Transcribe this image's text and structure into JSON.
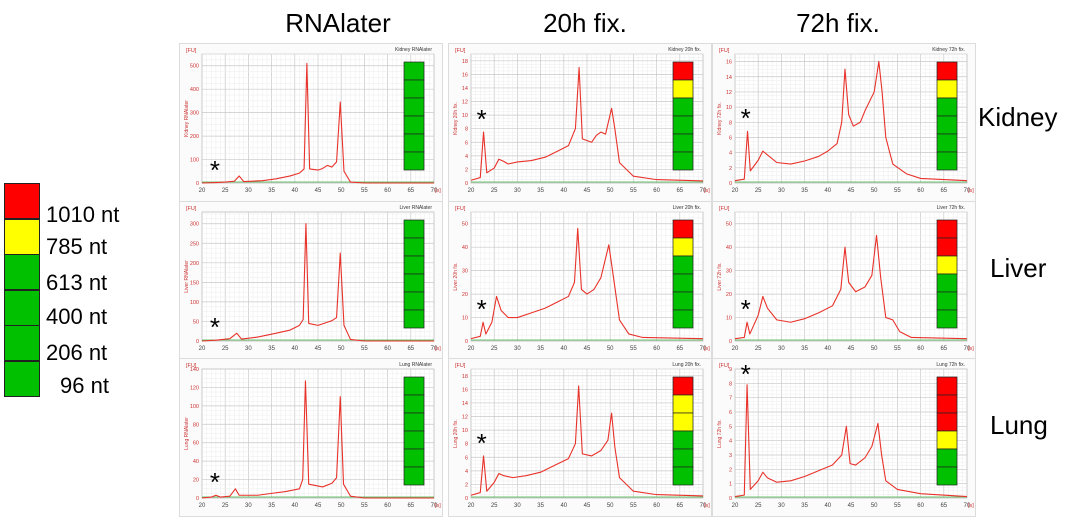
{
  "columns": [
    "RNAlater",
    "20h fix.",
    "72h fix."
  ],
  "rows": [
    "Kidney",
    "Liver",
    "Lung"
  ],
  "legend": {
    "items": [
      {
        "label": "1010 nt",
        "color": "#ff0000"
      },
      {
        "label": "785 nt",
        "color": "#ffff00"
      },
      {
        "label": "613 nt",
        "color": "#00c000"
      },
      {
        "label": "400 nt",
        "color": "#00c000"
      },
      {
        "label": "206 nt",
        "color": "#00c000"
      },
      {
        "label": "96 nt",
        "color": "#00c000"
      }
    ]
  },
  "colors": {
    "trace": "#e8322a",
    "baseline": "#3cb043",
    "red": "#ff0000",
    "yellow": "#ffff00",
    "green": "#00c000"
  },
  "chart_data": {
    "type": "line",
    "x_unit": "[s]",
    "y_unit": "[FU]",
    "xlim": [
      20,
      70
    ],
    "x_ticks": [
      20,
      25,
      30,
      35,
      40,
      45,
      50,
      55,
      60,
      65,
      70
    ],
    "panels": [
      {
        "row": "Kidney",
        "col": "RNAlater",
        "sample": "Kidney RNAlater",
        "ylim": [
          0,
          550
        ],
        "y_ticks": [
          0,
          100,
          200,
          300,
          400,
          500
        ],
        "asterisk_x": 23,
        "bars": [
          "green",
          "green",
          "green",
          "green",
          "green",
          "green"
        ],
        "points": [
          [
            20,
            0
          ],
          [
            23,
            2
          ],
          [
            25,
            4
          ],
          [
            27,
            8
          ],
          [
            28,
            30
          ],
          [
            29,
            6
          ],
          [
            33,
            10
          ],
          [
            36,
            18
          ],
          [
            39,
            30
          ],
          [
            41,
            42
          ],
          [
            42,
            60
          ],
          [
            42.6,
            510
          ],
          [
            43.2,
            60
          ],
          [
            45,
            55
          ],
          [
            46,
            62
          ],
          [
            47,
            75
          ],
          [
            48,
            68
          ],
          [
            49,
            90
          ],
          [
            49.8,
            345
          ],
          [
            50.6,
            50
          ],
          [
            52,
            4
          ],
          [
            55,
            0
          ],
          [
            70,
            0
          ]
        ]
      },
      {
        "row": "Kidney",
        "col": "20h fix.",
        "sample": "Kidney 20h fix.",
        "ylim": [
          0,
          19
        ],
        "y_ticks": [
          0,
          2,
          4,
          6,
          8,
          10,
          12,
          14,
          16,
          18
        ],
        "asterisk_x": 22.5,
        "bars": [
          "red",
          "yellow",
          "green",
          "green",
          "green",
          "green"
        ],
        "points": [
          [
            20,
            0.4
          ],
          [
            22,
            0.8
          ],
          [
            22.7,
            7.5
          ],
          [
            23.4,
            1.5
          ],
          [
            25,
            2.2
          ],
          [
            26,
            3.5
          ],
          [
            27,
            3.2
          ],
          [
            28,
            2.8
          ],
          [
            30,
            3.1
          ],
          [
            33,
            3.3
          ],
          [
            36,
            3.8
          ],
          [
            39,
            4.8
          ],
          [
            41,
            5.5
          ],
          [
            42.5,
            8
          ],
          [
            43.3,
            17
          ],
          [
            44,
            6.5
          ],
          [
            46,
            6
          ],
          [
            47,
            7
          ],
          [
            48,
            7.5
          ],
          [
            49,
            7.2
          ],
          [
            50.3,
            11
          ],
          [
            51,
            8
          ],
          [
            52,
            3
          ],
          [
            55,
            1
          ],
          [
            60,
            0.5
          ],
          [
            70,
            0.3
          ]
        ]
      },
      {
        "row": "Kidney",
        "col": "72h fix.",
        "sample": "Kidney 72h fix.",
        "ylim": [
          0,
          17
        ],
        "y_ticks": [
          0,
          2,
          4,
          6,
          8,
          10,
          12,
          14,
          16
        ],
        "asterisk_x": 22.5,
        "bars": [
          "red",
          "yellow",
          "green",
          "green",
          "green",
          "green"
        ],
        "points": [
          [
            20,
            0.3
          ],
          [
            22,
            0.5
          ],
          [
            22.7,
            6.8
          ],
          [
            23.3,
            1.6
          ],
          [
            25,
            3
          ],
          [
            26,
            4.2
          ],
          [
            27,
            3.7
          ],
          [
            29,
            2.7
          ],
          [
            32,
            2.5
          ],
          [
            35,
            2.9
          ],
          [
            38,
            3.5
          ],
          [
            40,
            4.2
          ],
          [
            42,
            5.2
          ],
          [
            43,
            8
          ],
          [
            43.7,
            15
          ],
          [
            44.5,
            9
          ],
          [
            45.5,
            7.5
          ],
          [
            47,
            8
          ],
          [
            48,
            9.5
          ],
          [
            50,
            12
          ],
          [
            51,
            16
          ],
          [
            51.7,
            12
          ],
          [
            52.5,
            6
          ],
          [
            54,
            2.5
          ],
          [
            57,
            1.2
          ],
          [
            60,
            0.6
          ],
          [
            70,
            0.3
          ]
        ]
      },
      {
        "row": "Liver",
        "col": "RNAlater",
        "sample": "Liver RNAlater",
        "ylim": [
          0,
          330
        ],
        "y_ticks": [
          0,
          50,
          100,
          150,
          200,
          250,
          300
        ],
        "asterisk_x": 23,
        "bars": [
          "green",
          "green",
          "green",
          "green",
          "green",
          "green"
        ],
        "points": [
          [
            20,
            0
          ],
          [
            23,
            2
          ],
          [
            26,
            6
          ],
          [
            27.5,
            20
          ],
          [
            28.5,
            5
          ],
          [
            32,
            10
          ],
          [
            36,
            20
          ],
          [
            39,
            28
          ],
          [
            41,
            40
          ],
          [
            41.8,
            55
          ],
          [
            42.4,
            300
          ],
          [
            43,
            45
          ],
          [
            45,
            40
          ],
          [
            47,
            48
          ],
          [
            48,
            52
          ],
          [
            49,
            60
          ],
          [
            49.8,
            225
          ],
          [
            50.6,
            40
          ],
          [
            52,
            4
          ],
          [
            55,
            0
          ],
          [
            70,
            0
          ]
        ]
      },
      {
        "row": "Liver",
        "col": "20h fix.",
        "sample": "Liver 20h fix.",
        "ylim": [
          0,
          55
        ],
        "y_ticks": [
          0,
          10,
          20,
          30,
          40,
          50
        ],
        "asterisk_x": 22.5,
        "bars": [
          "red",
          "yellow",
          "green",
          "green",
          "green",
          "green"
        ],
        "points": [
          [
            20,
            1
          ],
          [
            22,
            2
          ],
          [
            22.6,
            8
          ],
          [
            23.2,
            3
          ],
          [
            24.5,
            8
          ],
          [
            25.5,
            19
          ],
          [
            26.5,
            13
          ],
          [
            28,
            10
          ],
          [
            30,
            10
          ],
          [
            33,
            12
          ],
          [
            36,
            14
          ],
          [
            39,
            17
          ],
          [
            41,
            19
          ],
          [
            42.3,
            25
          ],
          [
            43,
            48
          ],
          [
            43.8,
            22
          ],
          [
            45,
            20
          ],
          [
            46.5,
            22
          ],
          [
            48,
            27
          ],
          [
            49.7,
            41
          ],
          [
            50.5,
            30
          ],
          [
            52,
            9
          ],
          [
            54,
            3
          ],
          [
            57,
            1.5
          ],
          [
            70,
            1
          ]
        ]
      },
      {
        "row": "Liver",
        "col": "72h fix.",
        "sample": "Liver 72h fix.",
        "ylim": [
          0,
          55
        ],
        "y_ticks": [
          0,
          10,
          20,
          30,
          40,
          50
        ],
        "asterisk_x": 22.5,
        "bars": [
          "red",
          "red",
          "yellow",
          "green",
          "green",
          "green"
        ],
        "points": [
          [
            20,
            1
          ],
          [
            22,
            1.5
          ],
          [
            22.6,
            8
          ],
          [
            23.2,
            3
          ],
          [
            25,
            11
          ],
          [
            26,
            19
          ],
          [
            27,
            14
          ],
          [
            29,
            9
          ],
          [
            32,
            8
          ],
          [
            35,
            9.5
          ],
          [
            38,
            12
          ],
          [
            41,
            15
          ],
          [
            42.8,
            22
          ],
          [
            43.7,
            40
          ],
          [
            44.5,
            25
          ],
          [
            46,
            21
          ],
          [
            48,
            23
          ],
          [
            49.5,
            28
          ],
          [
            50.5,
            45
          ],
          [
            51.4,
            27
          ],
          [
            52.5,
            10
          ],
          [
            54,
            9
          ],
          [
            55.5,
            4
          ],
          [
            58,
            1.5
          ],
          [
            70,
            1
          ]
        ]
      },
      {
        "row": "Lung",
        "col": "RNAlater",
        "sample": "Lung RNAlater",
        "ylim": [
          0,
          140
        ],
        "y_ticks": [
          0,
          20,
          40,
          60,
          80,
          100,
          120,
          140
        ],
        "asterisk_x": 23,
        "bars": [
          "green",
          "green",
          "green",
          "green",
          "green",
          "green"
        ],
        "points": [
          [
            20,
            0
          ],
          [
            22,
            1
          ],
          [
            23,
            3
          ],
          [
            24,
            1
          ],
          [
            26,
            2
          ],
          [
            27.2,
            10
          ],
          [
            28,
            3
          ],
          [
            32,
            3
          ],
          [
            35,
            5
          ],
          [
            38,
            7
          ],
          [
            41,
            10
          ],
          [
            41.7,
            20
          ],
          [
            42.3,
            127
          ],
          [
            43,
            15
          ],
          [
            46,
            12
          ],
          [
            48,
            16
          ],
          [
            49,
            22
          ],
          [
            49.8,
            110
          ],
          [
            50.5,
            15
          ],
          [
            52,
            2
          ],
          [
            55,
            0
          ],
          [
            70,
            0
          ]
        ]
      },
      {
        "row": "Lung",
        "col": "20h fix.",
        "sample": "Lung 20h fix.",
        "ylim": [
          0,
          19
        ],
        "y_ticks": [
          0,
          2,
          4,
          6,
          8,
          10,
          12,
          14,
          16,
          18
        ],
        "asterisk_x": 22.5,
        "bars": [
          "red",
          "yellow",
          "yellow",
          "green",
          "green",
          "green"
        ],
        "points": [
          [
            20,
            0.4
          ],
          [
            22,
            0.8
          ],
          [
            22.7,
            6.2
          ],
          [
            23.4,
            1
          ],
          [
            25,
            2.3
          ],
          [
            26,
            3.6
          ],
          [
            27,
            3.3
          ],
          [
            29,
            3
          ],
          [
            32,
            3.3
          ],
          [
            35,
            3.8
          ],
          [
            38,
            4.8
          ],
          [
            41,
            5.8
          ],
          [
            42.5,
            8
          ],
          [
            43.2,
            16.5
          ],
          [
            44,
            6.5
          ],
          [
            46,
            6.2
          ],
          [
            48,
            7
          ],
          [
            49.5,
            8.5
          ],
          [
            50.3,
            12.5
          ],
          [
            51,
            7.5
          ],
          [
            52,
            3
          ],
          [
            55,
            1
          ],
          [
            60,
            0.5
          ],
          [
            70,
            0.3
          ]
        ]
      },
      {
        "row": "Lung",
        "col": "72h fix.",
        "sample": "Lung 72h fix.",
        "ylim": [
          0,
          9
        ],
        "y_ticks": [
          0,
          1,
          2,
          3,
          4,
          5,
          6,
          7,
          8,
          9
        ],
        "asterisk_x": 22.5,
        "bars": [
          "red",
          "red",
          "red",
          "yellow",
          "green",
          "green"
        ],
        "points": [
          [
            20,
            0.1
          ],
          [
            22,
            0.2
          ],
          [
            22.6,
            7.9
          ],
          [
            23.3,
            0.6
          ],
          [
            25,
            1.2
          ],
          [
            26,
            1.8
          ],
          [
            27,
            1.4
          ],
          [
            29,
            1.1
          ],
          [
            32,
            1.2
          ],
          [
            35,
            1.5
          ],
          [
            38,
            1.9
          ],
          [
            41,
            2.3
          ],
          [
            43,
            3
          ],
          [
            44,
            5
          ],
          [
            44.8,
            2.4
          ],
          [
            46,
            2.3
          ],
          [
            48,
            2.8
          ],
          [
            49.5,
            3.6
          ],
          [
            50.8,
            5.2
          ],
          [
            51.6,
            3
          ],
          [
            52.5,
            1.2
          ],
          [
            55,
            0.6
          ],
          [
            60,
            0.3
          ],
          [
            70,
            0.1
          ]
        ]
      }
    ]
  }
}
